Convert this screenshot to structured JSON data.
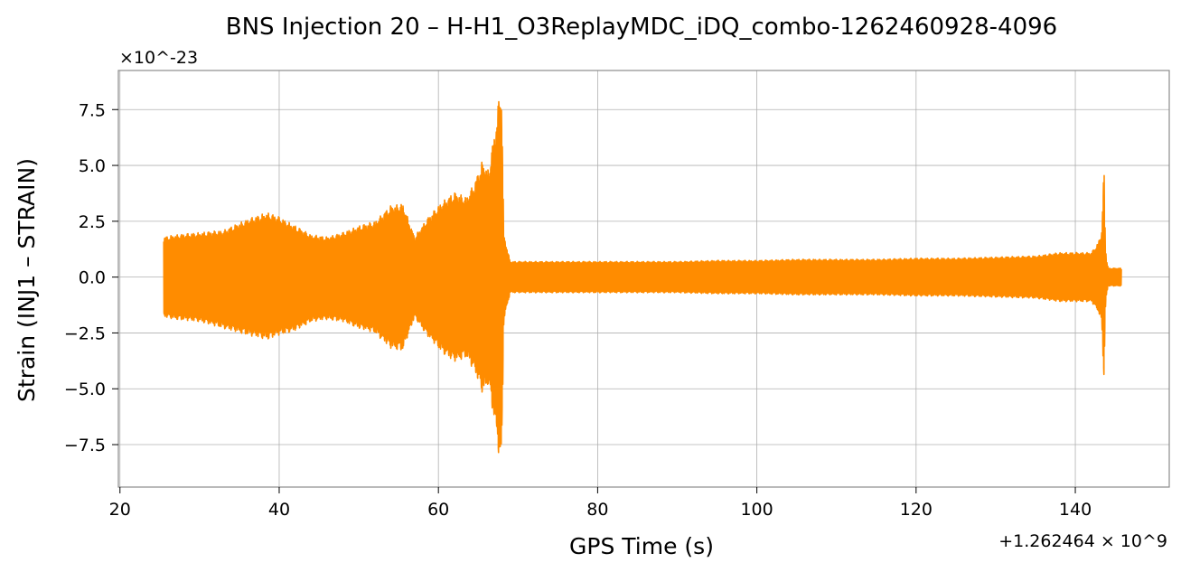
{
  "chart_data": {
    "type": "line",
    "title": "BNS Injection 20 – H-H1_O3ReplayMDC_iDQ_combo-1262460928-4096",
    "xlabel": "GPS Time (s)",
    "ylabel": "Strain (INJ1 – STRAIN)",
    "x_offset_label": "+1.262464 × 10^9",
    "y_scale_label": "×10^-23",
    "xlim": [
      19.8,
      151.8
    ],
    "ylim": [
      -9.4,
      9.25
    ],
    "x_ticks": [
      20,
      40,
      60,
      80,
      100,
      120,
      140
    ],
    "x_tick_labels": [
      "20",
      "40",
      "60",
      "80",
      "100",
      "120",
      "140"
    ],
    "y_ticks": [
      -7.5,
      -5.0,
      -2.5,
      0.0,
      2.5,
      5.0,
      7.5
    ],
    "y_tick_labels": [
      "−7.5",
      "−5.0",
      "−2.5",
      "0.0",
      "2.5",
      "5.0",
      "7.5"
    ],
    "grid": true,
    "line_color": "#ff8c00",
    "series": [
      {
        "envelope_x": [
          25.5,
          27,
          30,
          33,
          36,
          38.5,
          40,
          42,
          44,
          46,
          48,
          50,
          52,
          54,
          55.5,
          57,
          58.5,
          60.5,
          62,
          63.5,
          64.5,
          65.5,
          66.3,
          66.8,
          67.3,
          67.6,
          67.9,
          68.2,
          69,
          72,
          76,
          80,
          85,
          90,
          95,
          100,
          105,
          110,
          115,
          120,
          125,
          130,
          135,
          138,
          140,
          142,
          142.8,
          143.3,
          143.6,
          143.75,
          143.9,
          144.1,
          144.4,
          145,
          145.8
        ],
        "envelope_max": [
          1.8,
          1.9,
          2.0,
          2.1,
          2.6,
          2.9,
          2.7,
          2.3,
          1.9,
          1.8,
          2.0,
          2.3,
          2.5,
          3.2,
          3.3,
          1.8,
          2.6,
          3.4,
          3.8,
          3.6,
          4.2,
          5.2,
          4.8,
          6.0,
          7.0,
          8.1,
          8.4,
          1.9,
          0.7,
          0.7,
          0.7,
          0.7,
          0.7,
          0.7,
          0.75,
          0.75,
          0.8,
          0.8,
          0.8,
          0.85,
          0.85,
          0.9,
          0.95,
          1.1,
          1.1,
          1.1,
          1.5,
          2.0,
          4.8,
          1.5,
          0.8,
          0.4,
          0.4,
          0.4,
          0.4
        ],
        "envelope_min": [
          -1.8,
          -1.9,
          -2.0,
          -2.3,
          -2.6,
          -2.8,
          -2.6,
          -2.4,
          -2.0,
          -1.9,
          -2.0,
          -2.3,
          -2.5,
          -3.2,
          -3.3,
          -1.8,
          -2.6,
          -3.4,
          -3.8,
          -3.6,
          -4.2,
          -5.2,
          -4.8,
          -6.0,
          -7.0,
          -8.1,
          -8.4,
          -1.9,
          -0.7,
          -0.7,
          -0.7,
          -0.7,
          -0.7,
          -0.7,
          -0.75,
          -0.75,
          -0.8,
          -0.8,
          -0.8,
          -0.85,
          -0.85,
          -0.9,
          -0.95,
          -1.1,
          -1.1,
          -1.1,
          -1.5,
          -2.0,
          -4.6,
          -1.5,
          -0.8,
          -0.4,
          -0.4,
          -0.4,
          -0.4
        ]
      }
    ]
  }
}
